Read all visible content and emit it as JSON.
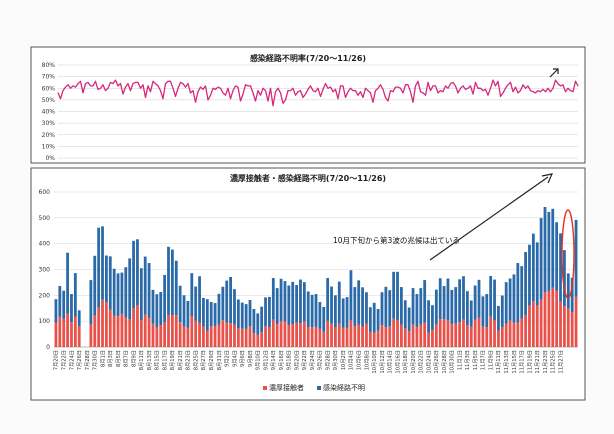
{
  "chart_data": [
    {
      "type": "line",
      "title": "感染経路不明率(7/20～11/26)",
      "ylim": [
        0,
        80
      ],
      "yticks": [
        "0%",
        "10%",
        "20%",
        "30%",
        "40%",
        "50%",
        "60%",
        "70%",
        "80%"
      ],
      "grid": true,
      "color": "#d6287d",
      "values": [
        56,
        51,
        58,
        61,
        63,
        60,
        62,
        61,
        64,
        66,
        56,
        64,
        65,
        62,
        62,
        66,
        59,
        60,
        63,
        58,
        60,
        65,
        64,
        67,
        62,
        64,
        55,
        61,
        64,
        58,
        64,
        65,
        65,
        60,
        63,
        52,
        62,
        57,
        66,
        64,
        62,
        58,
        51,
        64,
        66,
        66,
        60,
        53,
        60,
        65,
        64,
        61,
        64,
        56,
        58,
        48,
        57,
        61,
        59,
        62,
        50,
        54,
        60,
        59,
        61,
        60,
        56,
        54,
        60,
        51,
        58,
        62,
        61,
        49,
        55,
        63,
        62,
        62,
        56,
        49,
        58,
        54,
        60,
        58,
        49,
        60,
        45,
        57,
        60,
        56,
        47,
        50,
        58,
        58,
        60,
        54,
        57,
        58,
        52,
        55,
        59,
        62,
        58,
        57,
        60,
        53,
        59,
        64,
        60,
        61,
        57,
        59,
        51,
        62,
        62,
        52,
        57,
        60,
        58,
        58,
        54,
        57,
        52,
        60,
        58,
        56,
        48,
        58,
        60,
        63,
        59,
        52,
        49,
        58,
        57,
        61,
        61,
        60,
        56,
        63,
        63,
        57,
        48,
        62,
        66,
        57,
        56,
        54,
        65,
        58,
        62,
        62,
        56,
        58,
        57,
        62,
        60,
        64,
        65,
        62,
        56,
        60,
        62,
        59,
        60,
        62,
        55,
        65,
        60,
        60,
        58,
        59,
        54,
        60,
        67,
        62,
        66,
        53,
        56,
        60,
        63,
        65,
        57,
        61,
        56,
        58,
        63,
        60,
        62,
        58,
        57,
        56,
        58,
        57,
        59,
        57,
        60,
        57,
        60,
        67,
        64,
        62,
        63,
        57,
        60,
        58,
        57,
        66,
        62
      ]
    },
    {
      "type": "bar",
      "title": "濃厚接触者・感染経路不明(7/20～11/26)",
      "ylim": [
        0,
        600
      ],
      "yticks": [
        "0",
        "100",
        "200",
        "300",
        "400",
        "500",
        "600"
      ],
      "grid": true,
      "annotation": "10月下旬から第3波の兆候は出ている",
      "series": [
        {
          "name": "濃厚接触者",
          "color": "#e8524a",
          "values": [
            95,
            118,
            109,
            130,
            96,
            118,
            80,
            0,
            0,
            89,
            121,
            152,
            183,
            173,
            145,
            122,
            119,
            128,
            113,
            108,
            151,
            161,
            104,
            126,
            114,
            90,
            76,
            84,
            97,
            124,
            124,
            123,
            96,
            79,
            74,
            120,
            101,
            95,
            79,
            63,
            80,
            80,
            87,
            104,
            95,
            92,
            87,
            73,
            71,
            70,
            80,
            54,
            48,
            57,
            80,
            76,
            106,
            88,
            100,
            99,
            85,
            89,
            95,
            92,
            99,
            76,
            77,
            78,
            70,
            59,
            101,
            90,
            76,
            90,
            74,
            74,
            103,
            81,
            87,
            79,
            91,
            60,
            55,
            64,
            85,
            76,
            80,
            109,
            103,
            86,
            71,
            61,
            86,
            77,
            86,
            95,
            56,
            66,
            86,
            108,
            108,
            104,
            88,
            90,
            96,
            106,
            84,
            78,
            105,
            114,
            79,
            77,
            117,
            103,
            63,
            76,
            91,
            102,
            94,
            95,
            110,
            124,
            160,
            177,
            160,
            184,
            212,
            217,
            230,
            218,
            175,
            158,
            151,
            135,
            194
          ]
        },
        {
          "name": "感染経路不明",
          "color": "#2a6aa8",
          "values": [
            90,
            118,
            109,
            235,
            109,
            168,
            62,
            0,
            0,
            170,
            232,
            310,
            284,
            181,
            206,
            181,
            166,
            160,
            196,
            235,
            260,
            256,
            201,
            224,
            211,
            131,
            128,
            129,
            182,
            264,
            253,
            211,
            141,
            121,
            104,
            166,
            133,
            179,
            111,
            122,
            94,
            90,
            119,
            129,
            162,
            179,
            137,
            111,
            101,
            96,
            102,
            93,
            82,
            99,
            112,
            118,
            161,
            140,
            164,
            156,
            153,
            163,
            145,
            169,
            152,
            139,
            125,
            127,
            104,
            96,
            166,
            144,
            124,
            163,
            114,
            119,
            194,
            151,
            171,
            152,
            121,
            94,
            116,
            83,
            127,
            157,
            140,
            182,
            188,
            146,
            110,
            92,
            142,
            128,
            142,
            164,
            125,
            96,
            136,
            158,
            128,
            161,
            133,
            142,
            166,
            168,
            132,
            102,
            133,
            146,
            117,
            128,
            158,
            158,
            96,
            123,
            160,
            163,
            187,
            230,
            203,
            244,
            236,
            262,
            245,
            315,
            330,
            306,
            305,
            265,
            265,
            217,
            134,
            133,
            298
          ]
        }
      ],
      "xticks": [
        "7月20日",
        "7月22日",
        "7月24日",
        "7月26日",
        "7月28日",
        "7月30日",
        "8月1日",
        "8月3日",
        "8月5日",
        "8月7日",
        "8月9日",
        "8月11日",
        "8月13日",
        "8月15日",
        "8月17日",
        "8月19日",
        "8月21日",
        "8月23日",
        "8月25日",
        "8月27日",
        "8月29日",
        "8月31日",
        "9月2日",
        "9月4日",
        "9月6日",
        "9月8日",
        "9月10日",
        "9月12日",
        "9月14日",
        "9月16日",
        "9月18日",
        "9月20日",
        "9月22日",
        "9月24日",
        "9月26日",
        "9月28日",
        "9月30日",
        "10月2日",
        "10月4日",
        "10月6日",
        "10月8日",
        "10月10日",
        "10月12日",
        "10月14日",
        "10月16日",
        "10月18日",
        "10月20日",
        "10月22日",
        "10月24日",
        "10月26日",
        "10月28日",
        "10月30日",
        "11月1日",
        "11月3日",
        "11月5日",
        "11月7日",
        "11月9日",
        "11月11日",
        "11月13日",
        "11月15日",
        "11月17日",
        "11月19日",
        "11月21日",
        "11月23日",
        "11月25日",
        "11月27日"
      ]
    }
  ]
}
